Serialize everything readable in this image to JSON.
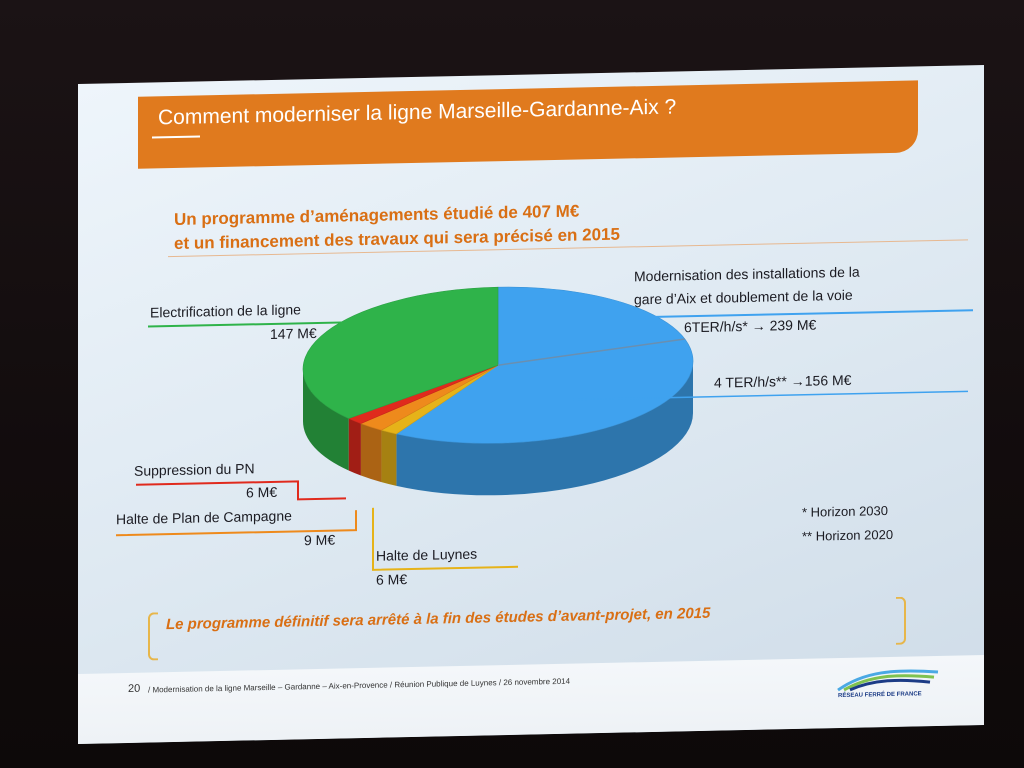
{
  "slide": {
    "title": "Comment moderniser la ligne Marseille-Gardanne-Aix ?",
    "subtitle_line1": "Un programme d’aménagements étudié de 407 M€",
    "subtitle_line2": "et un financement des travaux qui sera précisé en 2015",
    "conclusion": "Le programme définitif sera arrêté à la fin des études d’avant-projet, en 2015",
    "page_number": "20",
    "footer_text": "/ Modernisation de la ligne Marseille – Gardanne – Aix-en-Provence / Réunion Publique de Luynes / 26 novembre 2014",
    "logo_text": "RÉSEAU FERRÉ DE FRANCE",
    "colors": {
      "header": "#e07a1e",
      "subtitle": "#d96f14",
      "green": "#2fb34a",
      "blue": "#3fa2ef",
      "red": "#e02a1d",
      "orange": "#ee8a1c",
      "yellow": "#e6b319"
    }
  },
  "labels": {
    "electrification": "Electrification de la ligne",
    "electrification_value": "147 M€",
    "modernisation_line1": "Modernisation des installations de la",
    "modernisation_line2": "gare d’Aix et doublement de la voie",
    "modernisation_6ter": "6TER/h/s* → 239 M€",
    "modernisation_4ter": "4 TER/h/s** →156 M€",
    "suppression": "Suppression du PN",
    "suppression_value": "6 M€",
    "halte_plan": "Halte de Plan de Campagne",
    "halte_plan_value": "9 M€",
    "halte_luynes": "Halte de Luynes",
    "halte_luynes_value": "6 M€",
    "note_2030": "* Horizon 2030",
    "note_2020": "** Horizon 2020"
  },
  "chart_data": {
    "type": "pie",
    "style": "3d",
    "unit": "M€",
    "slices": [
      {
        "label": "Modernisation des installations de la gare d’Aix et doublement de la voie",
        "value": 239,
        "color": "#3fa2ef"
      },
      {
        "label": "Halte de Luynes",
        "value": 6,
        "color": "#e6b319"
      },
      {
        "label": "Halte de Plan de Campagne",
        "value": 9,
        "color": "#ee8a1c"
      },
      {
        "label": "Suppression du PN",
        "value": 6,
        "color": "#e02a1d"
      },
      {
        "label": "Electrification de la ligne",
        "value": 147,
        "color": "#2fb34a"
      }
    ],
    "sub_values": [
      {
        "label": "4 TER/h/s** (Horizon 2020)",
        "value": 156
      },
      {
        "label": "6TER/h/s* (Horizon 2030)",
        "value": 239
      }
    ]
  }
}
